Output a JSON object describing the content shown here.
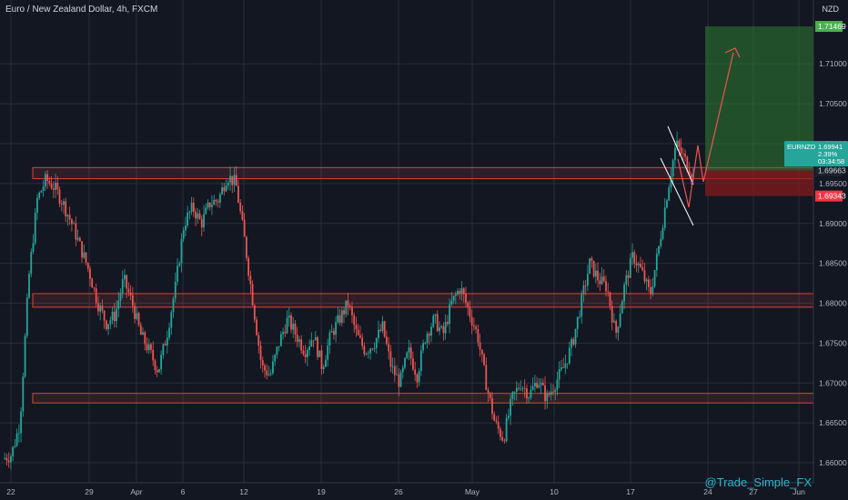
{
  "header": {
    "title": "Euro / New Zealand Dollar, 4h, FXCM",
    "currency": "NZD"
  },
  "watermark": "@Trade_Simple_FX",
  "colors": {
    "background": "#131722",
    "up": "#26a69a",
    "down": "#ef5350",
    "grid": "#2a2e39",
    "zone_border": "#e0413b",
    "profit_zone": "#2e7d32",
    "loss_zone": "#8b1a1a",
    "arrow": "#ef5350",
    "wedge": "#ffffff",
    "tag_current": "#26a69a",
    "tag_target": "#4caf50",
    "tag_stop": "#f23645",
    "text": "#b2b5be"
  },
  "chart_data": {
    "type": "candlestick",
    "symbol": "EURNZD",
    "timeframe": "4h",
    "x_ticks": [
      "22",
      "29",
      "Apr",
      "6",
      "12",
      "19",
      "26",
      "May",
      "10",
      "17",
      "24",
      "27",
      "Jun"
    ],
    "y_ticks": [
      "1.66000",
      "1.66500",
      "1.67000",
      "1.67500",
      "1.68000",
      "1.68500",
      "1.69000",
      "1.69500",
      "1.70000",
      "1.70500",
      "1.71000"
    ],
    "ylim": [
      1.6575,
      1.718
    ],
    "price_tags": {
      "target": "1.71469",
      "current_symbol": "EURNZD",
      "current_price": "1.69941",
      "change_pct": "2.39%",
      "countdown": "03:34:58",
      "entry": "1.69663",
      "stop": "1.69343"
    },
    "target_price": 1.71469,
    "current_price": 1.69941,
    "entry_price": 1.69663,
    "stop_price": 1.69343,
    "zones": [
      {
        "low": 1.6956,
        "high": 1.697
      },
      {
        "low": 1.6795,
        "high": 1.6812
      },
      {
        "low": 1.6675,
        "high": 1.6687
      }
    ],
    "price_path": [
      {
        "x": 0,
        "y": 1.6605
      },
      {
        "x": 1,
        "y": 1.661
      },
      {
        "x": 2,
        "y": 1.665
      },
      {
        "x": 3,
        "y": 1.683
      },
      {
        "x": 4,
        "y": 1.693
      },
      {
        "x": 5,
        "y": 1.6955
      },
      {
        "x": 6,
        "y": 1.6945
      },
      {
        "x": 7,
        "y": 1.6925
      },
      {
        "x": 8,
        "y": 1.69
      },
      {
        "x": 9,
        "y": 1.687
      },
      {
        "x": 10,
        "y": 1.684
      },
      {
        "x": 11,
        "y": 1.68
      },
      {
        "x": 12,
        "y": 1.6775
      },
      {
        "x": 13,
        "y": 1.6785
      },
      {
        "x": 14,
        "y": 1.683
      },
      {
        "x": 15,
        "y": 1.68
      },
      {
        "x": 16,
        "y": 1.676
      },
      {
        "x": 17,
        "y": 1.674
      },
      {
        "x": 18,
        "y": 1.6715
      },
      {
        "x": 19,
        "y": 1.676
      },
      {
        "x": 20,
        "y": 1.682
      },
      {
        "x": 21,
        "y": 1.69
      },
      {
        "x": 22,
        "y": 1.692
      },
      {
        "x": 23,
        "y": 1.69
      },
      {
        "x": 24,
        "y": 1.6925
      },
      {
        "x": 25,
        "y": 1.693
      },
      {
        "x": 26,
        "y": 1.696
      },
      {
        "x": 27,
        "y": 1.695
      },
      {
        "x": 28,
        "y": 1.688
      },
      {
        "x": 29,
        "y": 1.68
      },
      {
        "x": 30,
        "y": 1.672
      },
      {
        "x": 31,
        "y": 1.671
      },
      {
        "x": 32,
        "y": 1.675
      },
      {
        "x": 33,
        "y": 1.678
      },
      {
        "x": 34,
        "y": 1.676
      },
      {
        "x": 35,
        "y": 1.674
      },
      {
        "x": 36,
        "y": 1.676
      },
      {
        "x": 37,
        "y": 1.672
      },
      {
        "x": 38,
        "y": 1.676
      },
      {
        "x": 39,
        "y": 1.678
      },
      {
        "x": 40,
        "y": 1.68
      },
      {
        "x": 41,
        "y": 1.676
      },
      {
        "x": 42,
        "y": 1.674
      },
      {
        "x": 43,
        "y": 1.675
      },
      {
        "x": 44,
        "y": 1.677
      },
      {
        "x": 45,
        "y": 1.672
      },
      {
        "x": 46,
        "y": 1.67
      },
      {
        "x": 47,
        "y": 1.674
      },
      {
        "x": 48,
        "y": 1.671
      },
      {
        "x": 49,
        "y": 1.676
      },
      {
        "x": 50,
        "y": 1.678
      },
      {
        "x": 51,
        "y": 1.676
      },
      {
        "x": 52,
        "y": 1.68
      },
      {
        "x": 53,
        "y": 1.682
      },
      {
        "x": 54,
        "y": 1.679
      },
      {
        "x": 55,
        "y": 1.676
      },
      {
        "x": 56,
        "y": 1.67
      },
      {
        "x": 57,
        "y": 1.665
      },
      {
        "x": 58,
        "y": 1.663
      },
      {
        "x": 59,
        "y": 1.668
      },
      {
        "x": 60,
        "y": 1.67
      },
      {
        "x": 61,
        "y": 1.6685
      },
      {
        "x": 62,
        "y": 1.6705
      },
      {
        "x": 63,
        "y": 1.668
      },
      {
        "x": 64,
        "y": 1.67
      },
      {
        "x": 65,
        "y": 1.672
      },
      {
        "x": 66,
        "y": 1.675
      },
      {
        "x": 67,
        "y": 1.68
      },
      {
        "x": 68,
        "y": 1.685
      },
      {
        "x": 69,
        "y": 1.683
      },
      {
        "x": 70,
        "y": 1.682
      },
      {
        "x": 71,
        "y": 1.676
      },
      {
        "x": 72,
        "y": 1.682
      },
      {
        "x": 73,
        "y": 1.686
      },
      {
        "x": 74,
        "y": 1.684
      },
      {
        "x": 75,
        "y": 1.681
      },
      {
        "x": 76,
        "y": 1.687
      },
      {
        "x": 77,
        "y": 1.694
      },
      {
        "x": 78,
        "y": 1.7
      },
      {
        "x": 79,
        "y": 1.698
      },
      {
        "x": 80,
        "y": 1.696
      }
    ]
  }
}
